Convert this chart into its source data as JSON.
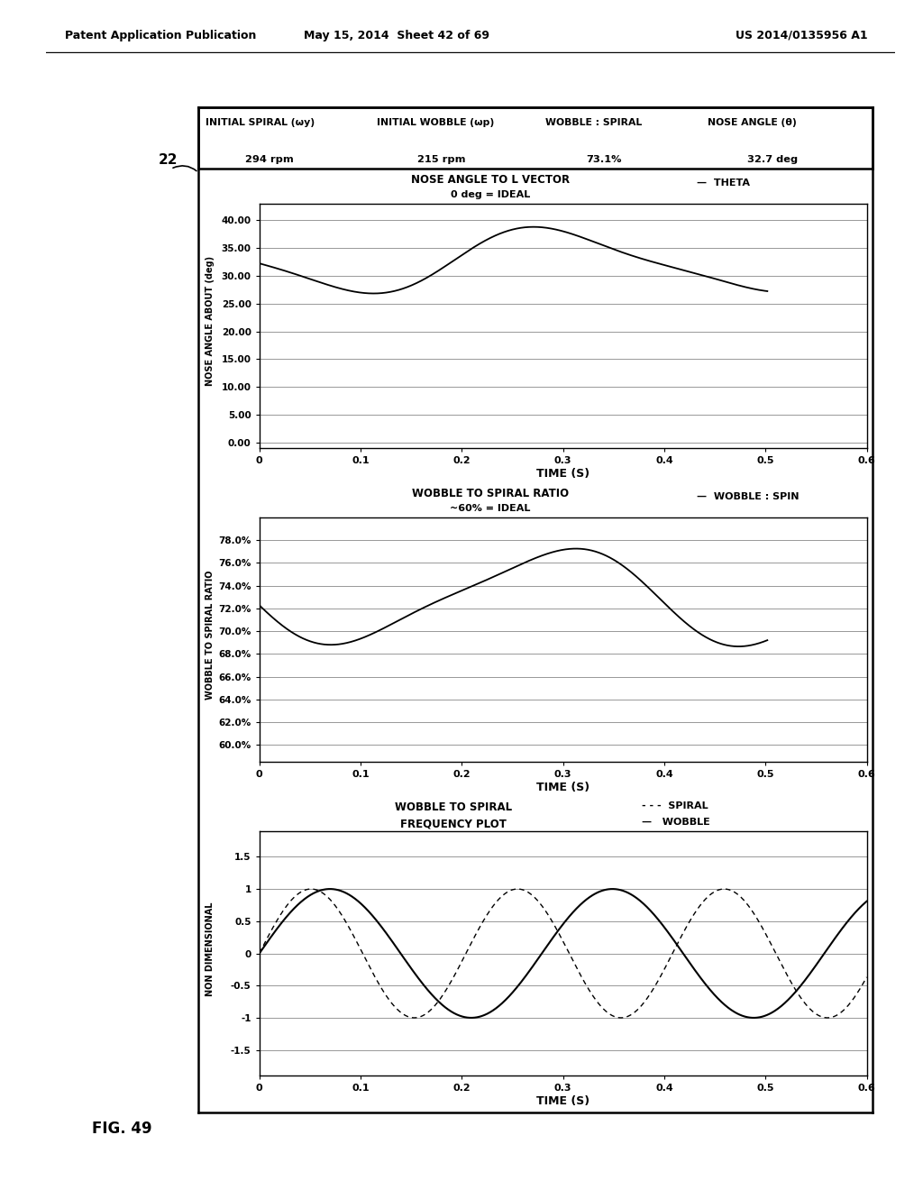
{
  "header_title1": "INITIAL SPIRAL (ωy)",
  "header_val1": "294 rpm",
  "header_title2": "INITIAL WOBBLE (ωp)",
  "header_val2": "215 rpm",
  "header_title3": "WOBBLE : SPIRAL",
  "header_val3": "73.1%",
  "header_title4": "NOSE ANGLE (θ)",
  "header_val4": "32.7 deg",
  "label22": "22",
  "fig_label": "FIG. 49",
  "page_header_left": "Patent Application Publication",
  "page_header_mid": "May 15, 2014  Sheet 42 of 69",
  "page_header_right": "US 2014/0135956 A1",
  "plot1_title": "NOSE ANGLE TO L VECTOR",
  "plot1_subtitle": "0 deg = IDEAL",
  "plot1_legend": "THETA",
  "plot1_ylabel": "NOSE ANGLE ABOUT (deg)",
  "plot1_xlabel": "TIME (S)",
  "plot1_yticks": [
    0.0,
    5.0,
    10.0,
    15.0,
    20.0,
    25.0,
    30.0,
    35.0,
    40.0
  ],
  "plot1_ylim": [
    -1.0,
    43.0
  ],
  "plot1_xlim": [
    0,
    0.6
  ],
  "plot1_xticks": [
    0,
    0.1,
    0.2,
    0.3,
    0.4,
    0.5,
    0.6
  ],
  "plot2_title": "WOBBLE TO SPIRAL RATIO",
  "plot2_subtitle": "~60% = IDEAL",
  "plot2_legend": "WOBBLE : SPIN",
  "plot2_ylabel": "WOBBLE TO SPIRAL RATIO",
  "plot2_xlabel": "TIME (S)",
  "plot2_yticks": [
    60.0,
    62.0,
    64.0,
    66.0,
    68.0,
    70.0,
    72.0,
    74.0,
    76.0,
    78.0
  ],
  "plot2_ylim": [
    58.5,
    80.0
  ],
  "plot2_xlim": [
    0,
    0.6
  ],
  "plot2_xticks": [
    0,
    0.1,
    0.2,
    0.3,
    0.4,
    0.5,
    0.6
  ],
  "plot3_title_line1": "WOBBLE TO SPIRAL",
  "plot3_title_line2": "FREQUENCY PLOT",
  "plot3_legend_spiral": "SPIRAL",
  "plot3_legend_wobble": "WOBBLE",
  "plot3_ylabel": "NON DIMENSIONAL",
  "plot3_xlabel": "TIME (S)",
  "plot3_yticks": [
    -1.5,
    -1,
    -0.5,
    0,
    0.5,
    1,
    1.5
  ],
  "plot3_ylim": [
    -1.9,
    1.9
  ],
  "plot3_xlim": [
    0,
    0.6
  ],
  "plot3_xticks": [
    0,
    0.1,
    0.2,
    0.3,
    0.4,
    0.5,
    0.6
  ],
  "bg_color": "#ffffff",
  "line_color": "#000000",
  "font_color": "#000000"
}
